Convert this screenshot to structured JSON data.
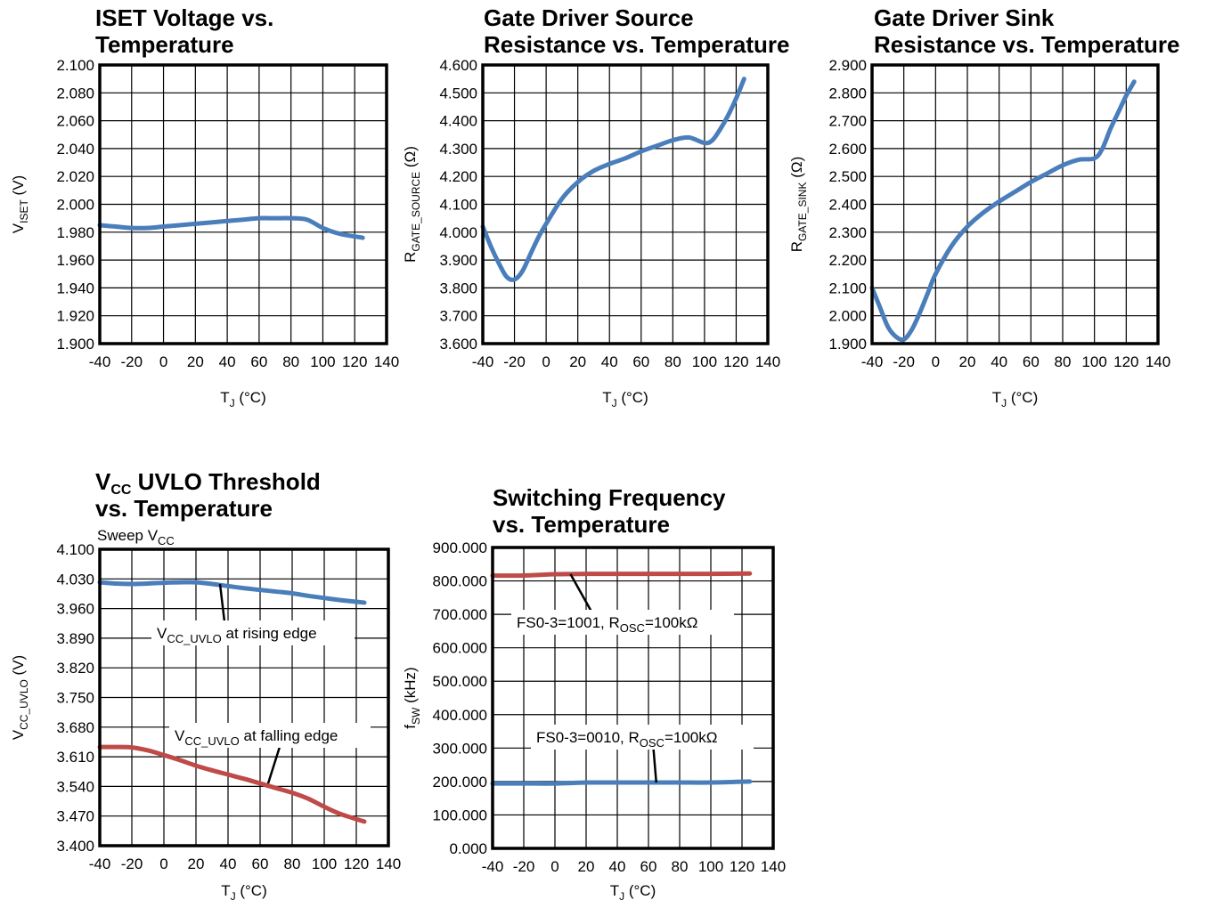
{
  "colors": {
    "blue": "#4a7ebb",
    "red": "#be4b48",
    "axis": "#000000"
  },
  "chart_data": [
    {
      "type": "line",
      "title_lines": [
        "ISET Voltage vs.",
        "Temperature"
      ],
      "ylabel": {
        "main": "V",
        "sub": "ISET",
        "unit": " (V)"
      },
      "xlabel": {
        "main": "T",
        "sub": "J",
        "unit": " (°C)"
      },
      "xlim": [
        -40,
        140
      ],
      "ylim": [
        1.9,
        2.1
      ],
      "x_ticks": [
        "-40",
        "-20",
        "0",
        "20",
        "40",
        "60",
        "80",
        "100",
        "120",
        "140"
      ],
      "y_ticks": [
        "1.900",
        "1.920",
        "1.940",
        "1.960",
        "1.980",
        "2.000",
        "2.020",
        "2.040",
        "2.060",
        "2.080",
        "2.100"
      ],
      "series": [
        {
          "color": "blue",
          "x": [
            -40,
            -30,
            -20,
            -10,
            0,
            10,
            20,
            30,
            40,
            50,
            60,
            70,
            80,
            90,
            100,
            110,
            125
          ],
          "y": [
            1.985,
            1.984,
            1.983,
            1.983,
            1.984,
            1.985,
            1.986,
            1.987,
            1.988,
            1.989,
            1.99,
            1.99,
            1.99,
            1.989,
            1.983,
            1.979,
            1.976
          ]
        }
      ]
    },
    {
      "type": "line",
      "title_lines": [
        "Gate Driver Source",
        "Resistance vs. Temperature"
      ],
      "ylabel": {
        "main": "R",
        "sub": "GATE_SOURCE",
        "unit": " (Ω)"
      },
      "xlabel": {
        "main": "T",
        "sub": "J",
        "unit": " (°C)"
      },
      "xlim": [
        -40,
        140
      ],
      "ylim": [
        3.6,
        4.6
      ],
      "x_ticks": [
        "-40",
        "-20",
        "0",
        "20",
        "40",
        "60",
        "80",
        "100",
        "120",
        "140"
      ],
      "y_ticks": [
        "3.600",
        "3.700",
        "3.800",
        "3.900",
        "4.000",
        "4.100",
        "4.200",
        "4.300",
        "4.400",
        "4.500",
        "4.600"
      ],
      "series": [
        {
          "color": "blue",
          "x": [
            -40,
            -35,
            -30,
            -25,
            -20,
            -15,
            -10,
            -5,
            0,
            10,
            20,
            30,
            40,
            50,
            60,
            70,
            80,
            90,
            100,
            105,
            110,
            115,
            120,
            125
          ],
          "y": [
            4.02,
            3.95,
            3.89,
            3.84,
            3.83,
            3.86,
            3.92,
            3.98,
            4.03,
            4.12,
            4.18,
            4.22,
            4.245,
            4.265,
            4.29,
            4.31,
            4.33,
            4.34,
            4.32,
            4.33,
            4.37,
            4.42,
            4.48,
            4.55
          ]
        }
      ]
    },
    {
      "type": "line",
      "title_lines": [
        "Gate Driver Sink",
        "Resistance vs. Temperature"
      ],
      "ylabel": {
        "main": "R",
        "sub": "GATE_SINK",
        "unit": " (Ω)"
      },
      "xlabel": {
        "main": "T",
        "sub": "J",
        "unit": " (°C)"
      },
      "xlim": [
        -40,
        140
      ],
      "ylim": [
        1.9,
        2.9
      ],
      "x_ticks": [
        "-40",
        "-20",
        "0",
        "20",
        "40",
        "60",
        "80",
        "100",
        "120",
        "140"
      ],
      "y_ticks": [
        "1.900",
        "2.000",
        "2.100",
        "2.200",
        "2.300",
        "2.400",
        "2.500",
        "2.600",
        "2.700",
        "2.800",
        "2.900"
      ],
      "series": [
        {
          "color": "blue",
          "x": [
            -40,
            -35,
            -30,
            -25,
            -20,
            -15,
            -10,
            -5,
            0,
            10,
            20,
            30,
            40,
            50,
            60,
            70,
            80,
            90,
            100,
            105,
            110,
            115,
            120,
            125
          ],
          "y": [
            2.1,
            2.03,
            1.96,
            1.925,
            1.915,
            1.95,
            2.01,
            2.08,
            2.15,
            2.25,
            2.32,
            2.37,
            2.41,
            2.445,
            2.48,
            2.51,
            2.54,
            2.56,
            2.565,
            2.6,
            2.67,
            2.73,
            2.79,
            2.84
          ]
        }
      ]
    },
    {
      "type": "line",
      "title_lines": [
        {
          "main": "V",
          "sub": "CC",
          "rest": " UVLO Threshold"
        },
        {
          "main": "vs. Temperature"
        }
      ],
      "subtitle": {
        "main": "Sweep V",
        "sub": "CC"
      },
      "ylabel": {
        "main": "V",
        "sub": "CC_UVLO",
        "unit": " (V)"
      },
      "xlabel": {
        "main": "T",
        "sub": "J",
        "unit": " (°C)"
      },
      "xlim": [
        -40,
        140
      ],
      "ylim": [
        3.4,
        4.1
      ],
      "x_ticks": [
        "-40",
        "-20",
        "0",
        "20",
        "40",
        "60",
        "80",
        "100",
        "120",
        "140"
      ],
      "y_ticks": [
        "3.400",
        "3.470",
        "3.540",
        "3.610",
        "3.680",
        "3.750",
        "3.820",
        "3.890",
        "3.960",
        "4.030",
        "4.100"
      ],
      "series": [
        {
          "color": "blue",
          "x": [
            -40,
            -30,
            -20,
            -10,
            0,
            10,
            20,
            30,
            40,
            50,
            60,
            70,
            80,
            90,
            100,
            110,
            125
          ],
          "y": [
            4.022,
            4.019,
            4.018,
            4.019,
            4.021,
            4.022,
            4.022,
            4.018,
            4.013,
            4.008,
            4.004,
            4.0,
            3.996,
            3.99,
            3.985,
            3.98,
            3.974
          ]
        },
        {
          "color": "red",
          "x": [
            -40,
            -30,
            -20,
            -10,
            0,
            10,
            20,
            30,
            40,
            50,
            60,
            70,
            80,
            90,
            100,
            110,
            125
          ],
          "y": [
            3.633,
            3.633,
            3.632,
            3.625,
            3.614,
            3.602,
            3.589,
            3.578,
            3.568,
            3.558,
            3.547,
            3.536,
            3.525,
            3.511,
            3.492,
            3.475,
            3.457
          ]
        }
      ],
      "annotations": [
        {
          "main": "V",
          "sub": "CC_UVLO",
          "rest": " at rising edge",
          "series": 0,
          "at_x": 35
        },
        {
          "main": "V",
          "sub": "CC_UVLO",
          "rest": " at falling edge",
          "series": 1,
          "at_x": 65
        }
      ]
    },
    {
      "type": "line",
      "title_lines": [
        "Switching Frequency",
        "vs. Temperature"
      ],
      "ylabel": {
        "main": "f",
        "sub": "SW",
        "unit": " (kHz)"
      },
      "xlabel": {
        "main": "T",
        "sub": "J",
        "unit": " (°C)"
      },
      "xlim": [
        -40,
        140
      ],
      "ylim": [
        0,
        900
      ],
      "x_ticks": [
        "-40",
        "-20",
        "0",
        "20",
        "40",
        "60",
        "80",
        "100",
        "120",
        "140"
      ],
      "y_ticks": [
        "0.000",
        "100.000",
        "200.000",
        "300.000",
        "400.000",
        "500.000",
        "600.000",
        "700.000",
        "800.000",
        "900.000"
      ],
      "series": [
        {
          "color": "red",
          "x": [
            -40,
            -20,
            0,
            20,
            40,
            60,
            80,
            100,
            125
          ],
          "y": [
            816,
            816,
            820,
            821,
            821,
            821,
            821,
            821,
            822
          ]
        },
        {
          "color": "blue",
          "x": [
            -40,
            -20,
            0,
            20,
            40,
            60,
            80,
            100,
            125
          ],
          "y": [
            194,
            194,
            194,
            197,
            197,
            197,
            197,
            197,
            200
          ]
        }
      ],
      "annotations": [
        {
          "main": "FS0-3=1001, R",
          "sub": "OSC",
          "rest": "=100kΩ",
          "series": 0,
          "at_x": 10
        },
        {
          "main": "FS0-3=0010, R",
          "sub": "OSC",
          "rest": "=100kΩ",
          "series": 1,
          "at_x": 65
        }
      ]
    }
  ]
}
